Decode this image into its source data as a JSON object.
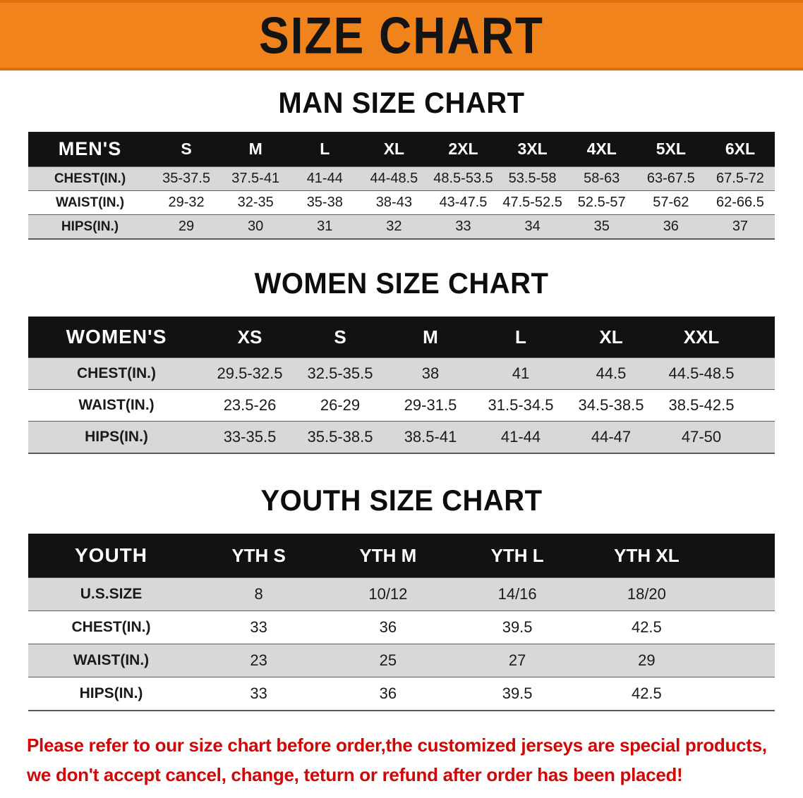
{
  "banner": {
    "title": "SIZE CHART"
  },
  "colors": {
    "banner_bg": "#f1831d",
    "banner_text": "#141414",
    "table_header_bg": "#121212",
    "table_header_text": "#ffffff",
    "row_alt_bg": "#d8d8d8",
    "row_bg": "#ffffff",
    "row_border": "#5a5a5a",
    "disclaimer_text": "#d10606"
  },
  "sections": [
    {
      "heading": "MAN SIZE CHART",
      "table": {
        "header": [
          "MEN'S",
          "S",
          "M",
          "L",
          "XL",
          "2XL",
          "3XL",
          "4XL",
          "5XL",
          "6XL"
        ],
        "rows": [
          [
            "CHEST(IN.)",
            "35-37.5",
            "37.5-41",
            "41-44",
            "44-48.5",
            "48.5-53.5",
            "53.5-58",
            "58-63",
            "63-67.5",
            "67.5-72"
          ],
          [
            "WAIST(IN.)",
            "29-32",
            "32-35",
            "35-38",
            "38-43",
            "43-47.5",
            "47.5-52.5",
            "52.5-57",
            "57-62",
            "62-66.5"
          ],
          [
            "HIPS(IN.)",
            "29",
            "30",
            "31",
            "32",
            "33",
            "34",
            "35",
            "36",
            "37"
          ]
        ]
      }
    },
    {
      "heading": "WOMEN SIZE CHART",
      "table": {
        "header": [
          "WOMEN'S",
          "XS",
          "S",
          "M",
          "L",
          "XL",
          "XXL"
        ],
        "rows": [
          [
            "CHEST(IN.)",
            "29.5-32.5",
            "32.5-35.5",
            "38",
            "41",
            "44.5",
            "44.5-48.5"
          ],
          [
            "WAIST(IN.)",
            "23.5-26",
            "26-29",
            "29-31.5",
            "31.5-34.5",
            "34.5-38.5",
            "38.5-42.5"
          ],
          [
            "HIPS(IN.)",
            "33-35.5",
            "35.5-38.5",
            "38.5-41",
            "41-44",
            "44-47",
            "47-50"
          ]
        ]
      }
    },
    {
      "heading": "YOUTH SIZE CHART",
      "table": {
        "header": [
          "YOUTH",
          "YTH S",
          "YTH M",
          "YTH L",
          "YTH XL"
        ],
        "rows": [
          [
            "U.S.SIZE",
            "8",
            "10/12",
            "14/16",
            "18/20"
          ],
          [
            "CHEST(IN.)",
            "33",
            "36",
            "39.5",
            "42.5"
          ],
          [
            "WAIST(IN.)",
            "23",
            "25",
            "27",
            "29"
          ],
          [
            "HIPS(IN.)",
            "33",
            "36",
            "39.5",
            "42.5"
          ]
        ]
      }
    }
  ],
  "disclaimer": {
    "line1": "Please refer to our size chart before order,the customized jerseys are special products,",
    "line2": "we don't accept cancel, change, teturn or refund after order has been placed!"
  }
}
